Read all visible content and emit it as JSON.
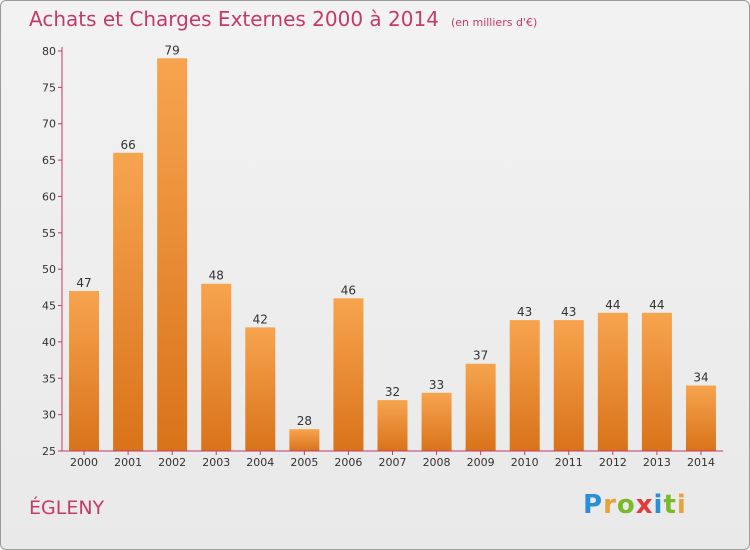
{
  "header": {
    "title": "Achats et Charges Externes 2000 à 2014",
    "subtitle": "(en milliers d'€)"
  },
  "footer": {
    "commune": "ÉGLENY",
    "brand_letters": [
      "P",
      "r",
      "o",
      "x",
      "i",
      "t",
      "i"
    ],
    "brand_colors": [
      "#2a8fd6",
      "#e8a23a",
      "#7ab929",
      "#e23a3a",
      "#2a8fd6",
      "#7ab929",
      "#e8a23a"
    ]
  },
  "chart_data": {
    "type": "bar",
    "title": "Achats et Charges Externes 2000 à 2014",
    "subtitle": "(en milliers d'€)",
    "categories": [
      "2000",
      "2001",
      "2002",
      "2003",
      "2004",
      "2005",
      "2006",
      "2007",
      "2008",
      "2009",
      "2010",
      "2011",
      "2012",
      "2013",
      "2014"
    ],
    "values": [
      47,
      66,
      79,
      48,
      42,
      28,
      46,
      32,
      33,
      37,
      43,
      43,
      44,
      44,
      34
    ],
    "data_labels": [
      "47",
      "66",
      "79",
      "48",
      "42",
      "28",
      "46",
      "32",
      "33",
      "37",
      "43",
      "43",
      "44",
      "44",
      "34"
    ],
    "yticks": [
      25,
      30,
      35,
      40,
      45,
      50,
      55,
      60,
      65,
      70,
      75,
      80
    ],
    "ylim": [
      25,
      80
    ],
    "grid": false,
    "legend": "none",
    "bar_color_top": "#f7a44f",
    "bar_color_bottom": "#d9731a",
    "axis_color": "#c43a6a"
  }
}
